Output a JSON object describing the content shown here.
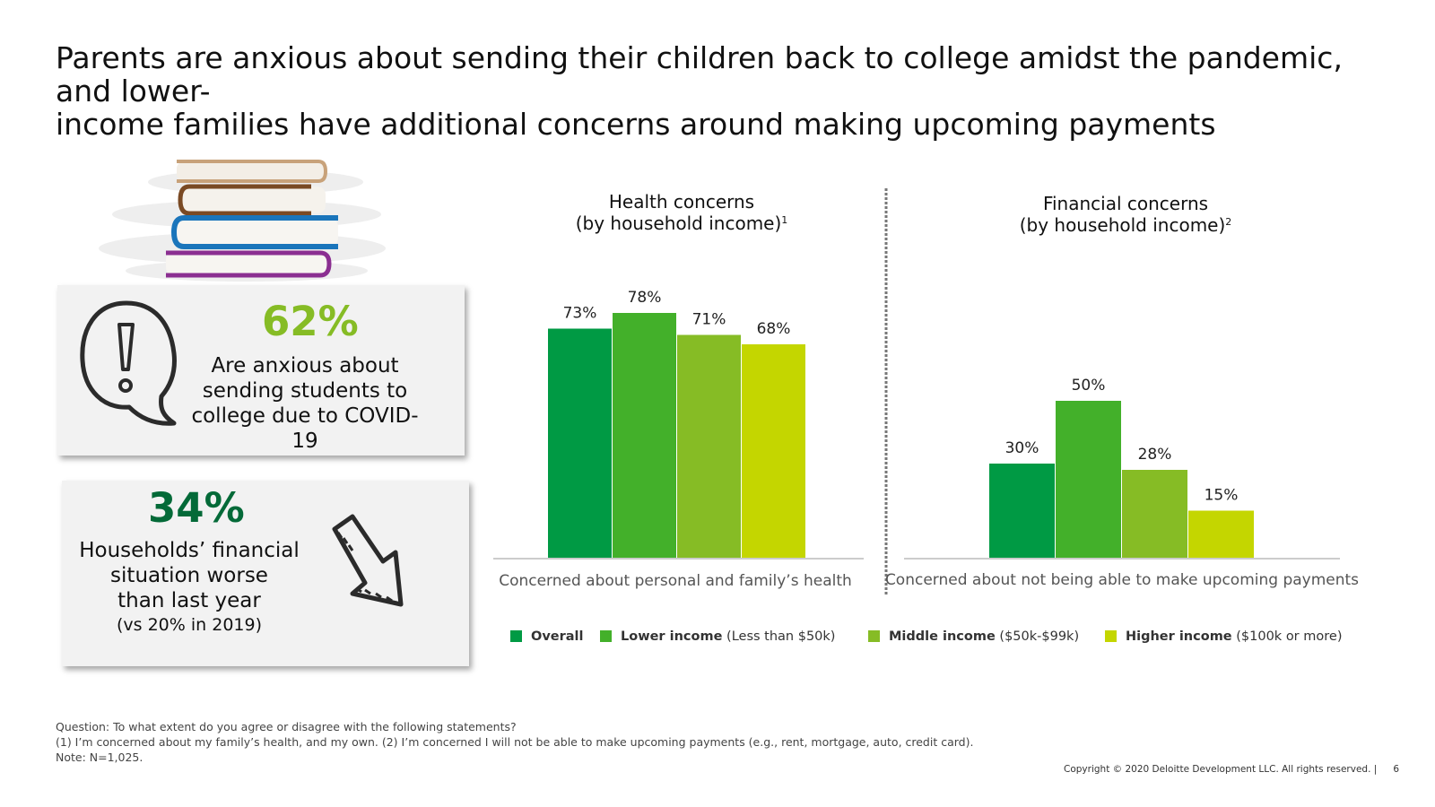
{
  "title": {
    "line1": "Parents are anxious about sending their children back to college amidst the pandemic, and lower-",
    "line2": "income families have additional concerns around making upcoming payments"
  },
  "stats": {
    "anxious": {
      "value": "62%",
      "lines": [
        "Are anxious about",
        "sending students to",
        "college due to COVID-19"
      ],
      "color": "#86bc25",
      "icon": "speech-bubble-exclamation-icon"
    },
    "financial": {
      "value": "34%",
      "lines": [
        "Households’ financial",
        "situation worse",
        "than last year"
      ],
      "sub": "(vs 20% in 2019)",
      "color": "#046a38",
      "icon": "arrow-down-right-icon"
    }
  },
  "colors": {
    "overall": "#009a44",
    "lower": "#43b02a",
    "middle": "#86bc25",
    "higher": "#c4d600",
    "axis": "#cccccc",
    "divider": "#777777"
  },
  "chart_data": [
    {
      "type": "bar",
      "title": "Health concerns",
      "subtitle": "(by household income)",
      "subtitle_sup": "1",
      "categories": [
        "Overall",
        "Lower income",
        "Middle income",
        "Higher income"
      ],
      "values": [
        73,
        78,
        71,
        68
      ],
      "labels": [
        "73%",
        "78%",
        "71%",
        "68%"
      ],
      "xlabel": "Concerned about personal and family’s health",
      "ylabel": "",
      "ylim": [
        0,
        100
      ]
    },
    {
      "type": "bar",
      "title": "Financial concerns",
      "subtitle": "(by household income)",
      "subtitle_sup": "2",
      "categories": [
        "Overall",
        "Lower income",
        "Middle income",
        "Higher income"
      ],
      "values": [
        30,
        50,
        28,
        15
      ],
      "labels": [
        "30%",
        "50%",
        "28%",
        "15%"
      ],
      "xlabel": "Concerned about not being able to make upcoming payments",
      "ylabel": "",
      "ylim": [
        0,
        100
      ]
    }
  ],
  "legend": [
    {
      "bold": "Overall",
      "rest": ""
    },
    {
      "bold": "Lower income",
      "rest": " (Less than $50k)"
    },
    {
      "bold": "Middle income",
      "rest": " ($50k-$99k)"
    },
    {
      "bold": "Higher income",
      "rest": " ($100k or more)"
    }
  ],
  "footnotes": {
    "question": "Question: To what extent do you agree or disagree with the following statements?",
    "defs": "(1) I’m concerned about my family’s health, and my own. (2) I’m concerned I will not be able to make upcoming payments (e.g., rent, mortgage, auto, credit card).",
    "note": "Note: N=1,025."
  },
  "copyright": "Copyright © 2020 Deloitte Development LLC. All rights reserved. |",
  "page_number": "6"
}
